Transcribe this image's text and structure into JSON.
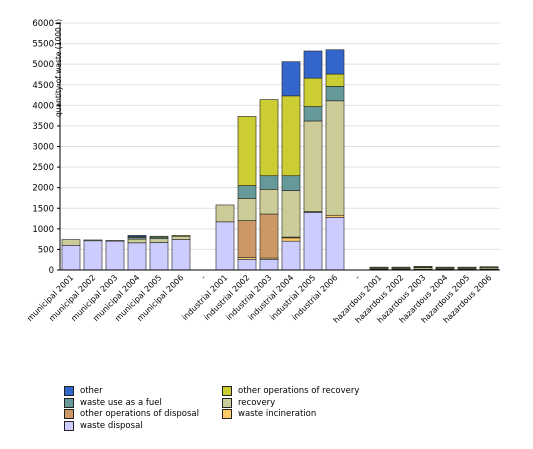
{
  "chart_data": {
    "type": "bar",
    "stacked": true,
    "ylabel": "quantity of waste (1000 t)",
    "ylim": [
      0,
      6000
    ],
    "ytick_step": 500,
    "grid": true,
    "legend_position": "bottom",
    "categories": [
      "municipal 2001",
      "municipal 2002",
      "municipal 2003",
      "municipal 2004",
      "municipal 2005",
      "municipal 2006",
      "-",
      "industrial 2001",
      "industrial 2002",
      "industrial 2003",
      "industrial 2004",
      "industrial 2005",
      "industrial 2006",
      "-",
      "hazardous 2001",
      "hazardous 2002",
      "hazardous 2003",
      "hazardous 2004",
      "hazardous 2005",
      "hazardous 2006"
    ],
    "series": [
      {
        "name": "waste disposal",
        "color": "#ccccff",
        "values": [
          600,
          710,
          710,
          660,
          670,
          740,
          0,
          1170,
          260,
          260,
          700,
          1400,
          1280,
          0,
          20,
          20,
          20,
          20,
          20,
          20
        ]
      },
      {
        "name": "waste incineration",
        "color": "#ffcc66",
        "values": [
          0,
          0,
          0,
          0,
          0,
          0,
          0,
          0,
          40,
          30,
          80,
          20,
          50,
          0,
          0,
          0,
          0,
          0,
          0,
          0
        ]
      },
      {
        "name": "other operations of disposal",
        "color": "#cc9966",
        "values": [
          0,
          0,
          0,
          0,
          0,
          0,
          0,
          0,
          900,
          1070,
          20,
          0,
          0,
          0,
          0,
          0,
          0,
          0,
          0,
          0
        ]
      },
      {
        "name": "recovery",
        "color": "#cccc99",
        "values": [
          140,
          20,
          10,
          90,
          90,
          80,
          0,
          410,
          540,
          600,
          1130,
          2200,
          2780,
          0,
          30,
          30,
          40,
          30,
          30,
          40
        ]
      },
      {
        "name": "waste use as a fuel",
        "color": "#669999",
        "values": [
          0,
          0,
          0,
          40,
          40,
          0,
          0,
          0,
          310,
          330,
          360,
          350,
          350,
          0,
          10,
          10,
          20,
          10,
          10,
          10
        ]
      },
      {
        "name": "other operations of recovery",
        "color": "#cccc33",
        "values": [
          0,
          0,
          0,
          20,
          20,
          20,
          0,
          0,
          1680,
          1850,
          1940,
          690,
          300,
          0,
          10,
          10,
          10,
          10,
          10,
          10
        ]
      },
      {
        "name": "other",
        "color": "#3366cc",
        "values": [
          0,
          0,
          0,
          30,
          0,
          0,
          0,
          0,
          0,
          0,
          830,
          660,
          590,
          0,
          0,
          0,
          0,
          0,
          0,
          0
        ]
      }
    ],
    "legend_columns": [
      [
        "other",
        "waste use as a fuel",
        "other operations of disposal",
        "waste disposal"
      ],
      [
        "other operations of recovery",
        "recovery",
        "waste incineration"
      ]
    ]
  }
}
